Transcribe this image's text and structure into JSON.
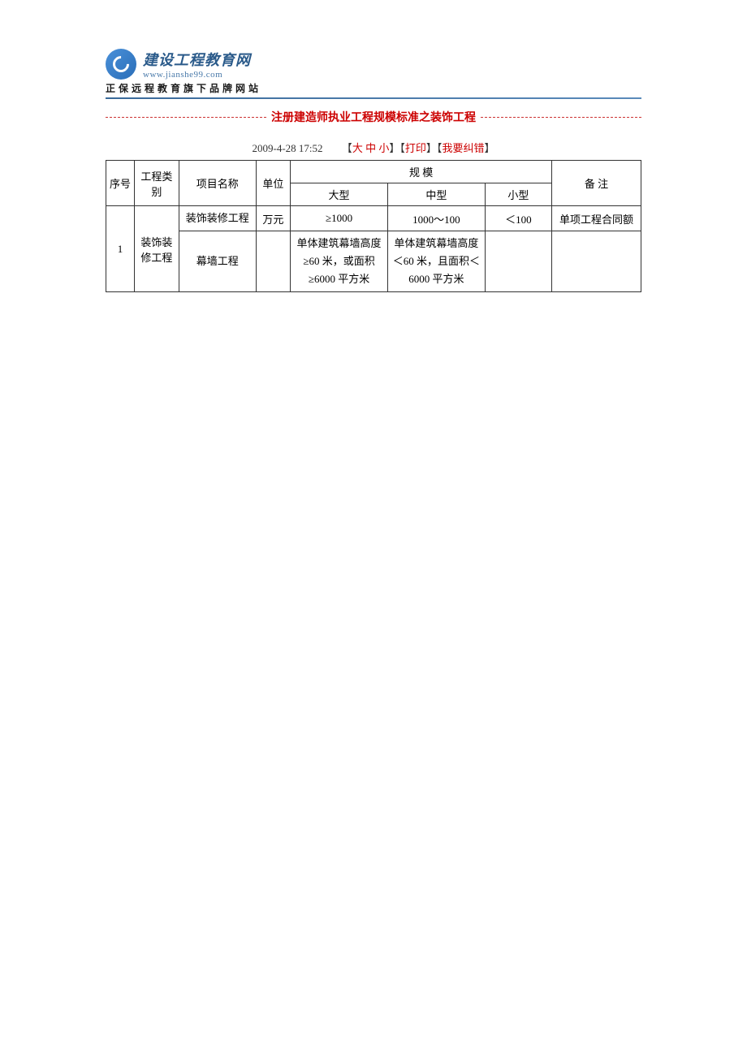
{
  "header": {
    "logo_title": "建设工程教育网",
    "logo_url": "www.jianshe99.com",
    "logo_subtitle": "正保远程教育旗下品牌网站"
  },
  "article": {
    "title": "注册建造师执业工程规模标准之装饰工程",
    "datetime": "2009-4-28 17:52",
    "size_large": "大",
    "size_medium": "中",
    "size_small": "小",
    "print_label": "打印",
    "correction_label": "我要纠错"
  },
  "table": {
    "headers": {
      "sequence": "序号",
      "category": "工程类别",
      "project_name": "项目名称",
      "unit": "单位",
      "scale": "规 模",
      "scale_large": "大型",
      "scale_medium": "中型",
      "scale_small": "小型",
      "remark": "备 注"
    },
    "row1": {
      "seq": "1",
      "category": "装饰装修工程",
      "project1": "装饰装修工程",
      "unit1": "万元",
      "large1": "≥1000",
      "medium1": "1000～100",
      "small1": "＜100",
      "remark1": "单项工程合同额",
      "project2": "幕墙工程",
      "unit2": "",
      "large2": "单体建筑幕墙高度≥60 米，或面积≥6000 平方米",
      "medium2": "单体建筑幕墙高度＜60 米，且面积＜6000 平方米",
      "small2": "",
      "remark2": ""
    }
  },
  "colors": {
    "title_red": "#cc0000",
    "link_red": "#cc0000",
    "text_black": "#333333",
    "border": "#333333",
    "logo_blue": "#2a5a8a"
  }
}
